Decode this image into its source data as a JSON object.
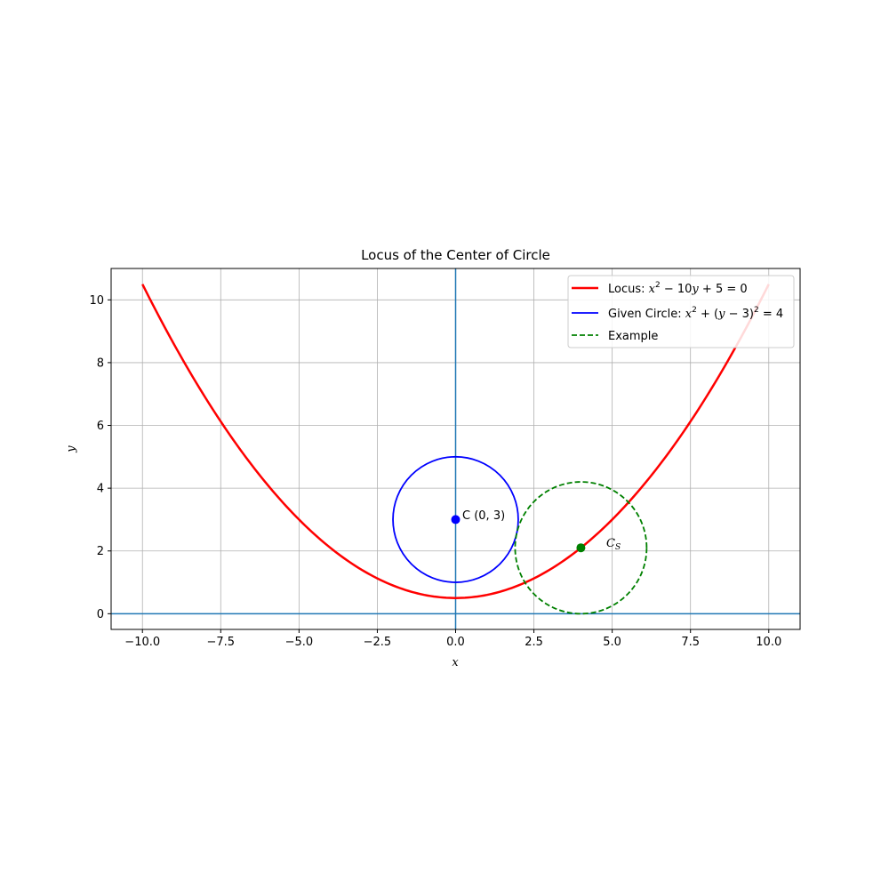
{
  "chart_data": {
    "type": "line",
    "title": "Locus of the Center of  Circle",
    "xlabel": "x",
    "ylabel": "y",
    "xlim": [
      -11,
      11
    ],
    "ylim": [
      -0.5,
      11
    ],
    "grid": true,
    "legend_placement": "top-right",
    "x_ticks": [
      -10.0,
      -7.5,
      -5.0,
      -2.5,
      0.0,
      2.5,
      5.0,
      7.5,
      10.0
    ],
    "x_tick_labels": [
      "−10.0",
      "−7.5",
      "−5.0",
      "−2.5",
      "0.0",
      "2.5",
      "5.0",
      "7.5",
      "10.0"
    ],
    "y_ticks": [
      0,
      2,
      4,
      6,
      8,
      10
    ],
    "y_tick_labels": [
      "0",
      "2",
      "4",
      "6",
      "8",
      "10"
    ],
    "series": [
      {
        "name": "Locus: x² − 10y + 5 = 0",
        "kind": "parabola",
        "equation": "y = (x^2 + 5) / 10",
        "x_range": [
          -10,
          10
        ],
        "color": "#ff0000",
        "style": "solid"
      },
      {
        "name": "Given Circle: x² + (y − 3)² = 4",
        "kind": "circle",
        "center": [
          0,
          3
        ],
        "radius": 2,
        "color": "#0000ff",
        "style": "solid"
      },
      {
        "name": "Example",
        "kind": "circle",
        "center": [
          4,
          2.1
        ],
        "radius": 2.1,
        "color": "#008000",
        "style": "dashed"
      }
    ],
    "reference_lines": [
      {
        "orientation": "vertical",
        "value": 0,
        "color": "#1f77b4"
      },
      {
        "orientation": "horizontal",
        "value": 0,
        "color": "#1f77b4"
      }
    ],
    "points": [
      {
        "x": 0,
        "y": 3,
        "color": "#0000ff",
        "label": "C (0, 3)"
      },
      {
        "x": 4,
        "y": 2.1,
        "color": "#008000",
        "label": "C_S"
      }
    ]
  },
  "legend": {
    "locus_prefix": "Locus: ",
    "circle_prefix": "Given Circle: ",
    "example_label": "Example"
  },
  "annotations": {
    "center_label": "C (0, 3)",
    "cs_main": "C",
    "cs_sub": "S"
  }
}
